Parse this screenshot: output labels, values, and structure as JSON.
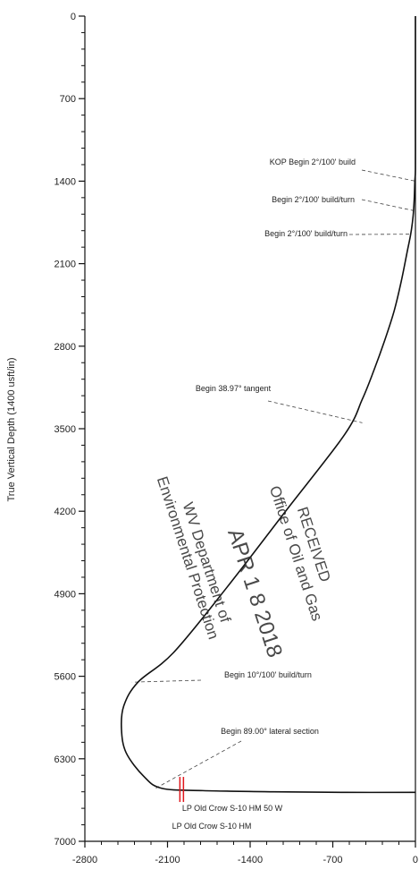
{
  "chart_data": {
    "type": "line",
    "ylabel": "True Vertical Depth (1400 usft/in)",
    "xlabel": "",
    "x_ticks": [
      -2800,
      -2100,
      -1400,
      -700,
      0
    ],
    "x_tick_labels": [
      "-2800",
      "-2100",
      "-1400",
      "-700",
      "0"
    ],
    "y_ticks": [
      0,
      700,
      1400,
      2100,
      2800,
      3500,
      4200,
      4900,
      5600,
      6300,
      7000
    ],
    "y_tick_labels": [
      "0",
      "700",
      "1400",
      "2100",
      "2800",
      "3500",
      "4200",
      "4900",
      "5600",
      "6300",
      "7000"
    ],
    "xlim": [
      -2800,
      0
    ],
    "ylim": [
      7000,
      0
    ],
    "y_inverted": true,
    "series": [
      {
        "points": [
          [
            0,
            0
          ],
          [
            0,
            300
          ],
          [
            0,
            700
          ],
          [
            0,
            1000
          ],
          [
            0,
            1300
          ],
          [
            -5,
            1400
          ],
          [
            -10,
            1550
          ],
          [
            -20,
            1700
          ],
          [
            -40,
            1850
          ],
          [
            -70,
            2000
          ],
          [
            -120,
            2250
          ],
          [
            -180,
            2500
          ],
          [
            -260,
            2750
          ],
          [
            -350,
            3000
          ],
          [
            -450,
            3250
          ],
          [
            -600,
            3550
          ],
          [
            -1100,
            4200
          ],
          [
            -1600,
            4850
          ],
          [
            -2050,
            5400
          ],
          [
            -2350,
            5650
          ],
          [
            -2470,
            5850
          ],
          [
            -2490,
            6050
          ],
          [
            -2450,
            6250
          ],
          [
            -2300,
            6450
          ],
          [
            -2150,
            6550
          ],
          [
            -1800,
            6570
          ],
          [
            -1200,
            6580
          ],
          [
            -600,
            6585
          ],
          [
            0,
            6585
          ]
        ]
      }
    ],
    "markers": [
      {
        "x": -1980,
        "y": 6560,
        "type": "double-line",
        "color": "#e0161c"
      }
    ],
    "annotations": [
      {
        "text": "KOP Begin 2°/100' build",
        "x": 0,
        "y": 1400
      },
      {
        "text": "Begin 2°/100' build/turn",
        "x": -15,
        "y": 1650
      },
      {
        "text": "Begin 2°/100' build/turn",
        "x": -40,
        "y": 1850
      },
      {
        "text": "Begin 38.97° tangent",
        "x": -450,
        "y": 3450
      },
      {
        "text": "Begin 10°/100' build/turn",
        "x": -2400,
        "y": 5650
      },
      {
        "text": "Begin 89.00° lateral section",
        "x": -2200,
        "y": 6550
      },
      {
        "text": "LP Old Crow S-10 HM 50 W",
        "x": -2100,
        "y": 6650
      },
      {
        "text": "LP Old Crow S-10 HM",
        "x": -2100,
        "y": 6820
      }
    ],
    "grid": false
  },
  "stamp": {
    "line1": "RECEIVED",
    "line2": "Office of Oil and Gas",
    "date": "APR 1 8 2018",
    "line3": "WV Department of",
    "line4": "Environmental Protection"
  },
  "colors": {
    "curve": "#111111",
    "marker": "#e0161c",
    "leader": "#444444"
  }
}
